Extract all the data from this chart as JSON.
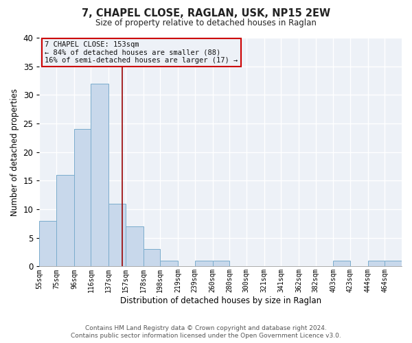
{
  "title1": "7, CHAPEL CLOSE, RAGLAN, USK, NP15 2EW",
  "title2": "Size of property relative to detached houses in Raglan",
  "xlabel": "Distribution of detached houses by size in Raglan",
  "ylabel": "Number of detached properties",
  "bin_labels": [
    "55sqm",
    "75sqm",
    "96sqm",
    "116sqm",
    "137sqm",
    "157sqm",
    "178sqm",
    "198sqm",
    "219sqm",
    "239sqm",
    "260sqm",
    "280sqm",
    "300sqm",
    "321sqm",
    "341sqm",
    "362sqm",
    "382sqm",
    "403sqm",
    "423sqm",
    "444sqm",
    "464sqm"
  ],
  "bin_edges": [
    55,
    75,
    96,
    116,
    137,
    157,
    178,
    198,
    219,
    239,
    260,
    280,
    300,
    321,
    341,
    362,
    382,
    403,
    423,
    444,
    464,
    484
  ],
  "bar_values": [
    8,
    16,
    24,
    32,
    11,
    7,
    3,
    1,
    0,
    1,
    1,
    0,
    0,
    0,
    0,
    0,
    0,
    1,
    0,
    1,
    1
  ],
  "bar_color": "#c8d8eb",
  "bar_edge_color": "#7aaccc",
  "vline_x": 153,
  "vline_color": "#990000",
  "annotation_line1": "7 CHAPEL CLOSE: 153sqm",
  "annotation_line2": "← 84% of detached houses are smaller (88)",
  "annotation_line3": "16% of semi-detached houses are larger (17) →",
  "annotation_box_color": "#cc0000",
  "ylim": [
    0,
    40
  ],
  "yticks": [
    0,
    5,
    10,
    15,
    20,
    25,
    30,
    35,
    40
  ],
  "footer1": "Contains HM Land Registry data © Crown copyright and database right 2024.",
  "footer2": "Contains public sector information licensed under the Open Government Licence v3.0.",
  "bg_color": "#ffffff",
  "plot_bg_color": "#edf1f7",
  "grid_color": "#ffffff"
}
